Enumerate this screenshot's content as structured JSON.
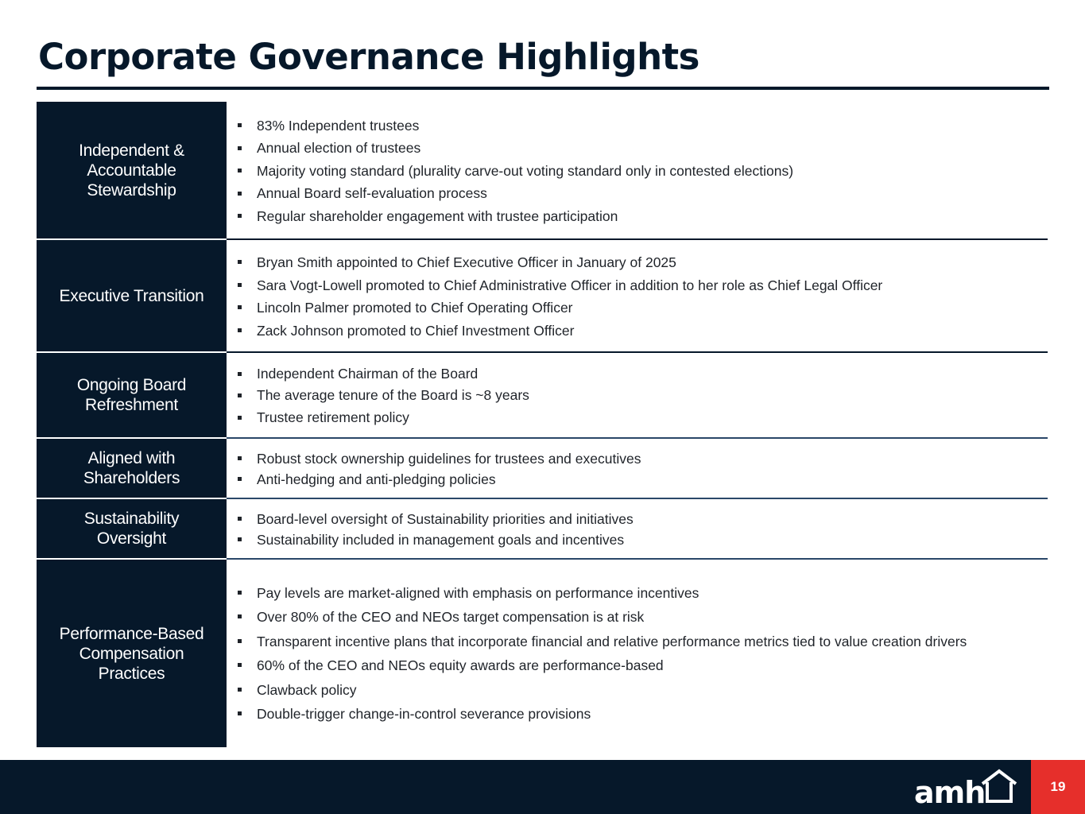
{
  "title": "Corporate Governance Highlights",
  "rows": [
    {
      "label": "Independent & Accountable Stewardship",
      "items": [
        "83% Independent trustees",
        "Annual election of trustees",
        "Majority voting standard (plurality carve-out voting standard only in contested elections)",
        "Annual Board self-evaluation process",
        "Regular shareholder engagement with trustee participation"
      ]
    },
    {
      "label": "Executive Transition",
      "items": [
        "Bryan Smith appointed to Chief Executive Officer in January of 2025",
        "Sara Vogt-Lowell promoted to Chief Administrative Officer in addition to her role as Chief Legal Officer",
        "Lincoln Palmer promoted to Chief Operating Officer",
        "Zack Johnson promoted to Chief Investment Officer"
      ]
    },
    {
      "label": "Ongoing Board Refreshment",
      "items": [
        "Independent Chairman of the Board",
        "The average tenure of the Board is ~8 years",
        "Trustee retirement policy"
      ]
    },
    {
      "label": "Aligned with Shareholders",
      "items": [
        "Robust stock ownership guidelines for trustees and executives",
        "Anti-hedging and anti-pledging policies"
      ]
    },
    {
      "label": "Sustainability Oversight",
      "items": [
        "Board-level oversight of Sustainability priorities and initiatives",
        "Sustainability included in management goals and incentives"
      ]
    },
    {
      "label": "Performance-Based Compensation Practices",
      "items": [
        "Pay levels are market-aligned with emphasis on performance incentives",
        "Over 80% of the CEO and NEOs target compensation is at risk",
        "Transparent incentive plans that incorporate financial and relative performance metrics tied to value creation drivers",
        "60% of the CEO and NEOs equity awards are performance-based",
        "Clawback policy",
        "Double-trigger change-in-control severance provisions"
      ]
    }
  ],
  "footer": {
    "logo_text": "amh",
    "page_number": "19"
  },
  "colors": {
    "navy": "#06182a",
    "accent_red": "#e62f2b",
    "row_divider_blue": "#2a4768"
  }
}
